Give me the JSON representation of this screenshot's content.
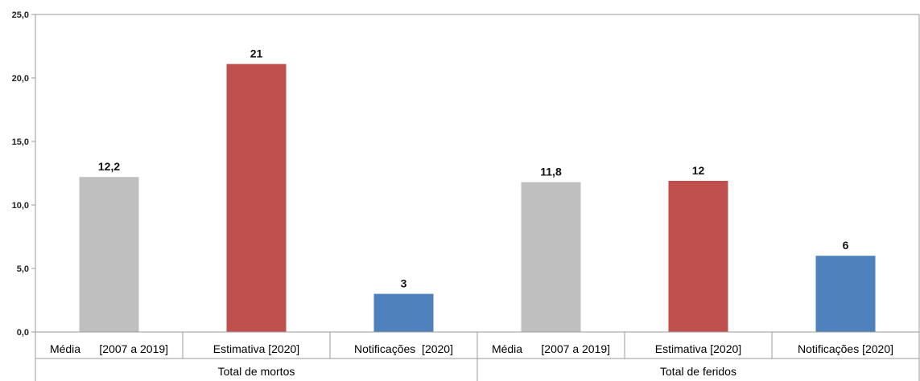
{
  "chart_data": {
    "type": "bar",
    "ylim": [
      0,
      25
    ],
    "yticks": [
      "0,0",
      "5,0",
      "10,0",
      "15,0",
      "20,0",
      "25,0"
    ],
    "grid": false,
    "groups": [
      {
        "label": "Total de mortos",
        "bars": [
          {
            "category": "Média      [2007 a 2019]",
            "value": 12.2,
            "label": "12,2",
            "color": "#bfbfbf"
          },
          {
            "category": "Estimativa [2020]",
            "value": 21.1,
            "label": "21",
            "color": "#c0504d"
          },
          {
            "category": "Notificações  [2020]",
            "value": 3,
            "label": "3",
            "color": "#4f81bd"
          }
        ]
      },
      {
        "label": "Total de feridos",
        "bars": [
          {
            "category": "Média      [2007 a 2019]",
            "value": 11.8,
            "label": "11,8",
            "color": "#bfbfbf"
          },
          {
            "category": "Estimativa [2020]",
            "value": 11.9,
            "label": "12",
            "color": "#c0504d"
          },
          {
            "category": "Notificações [2020]",
            "value": 6,
            "label": "6",
            "color": "#4f81bd"
          }
        ]
      }
    ]
  }
}
